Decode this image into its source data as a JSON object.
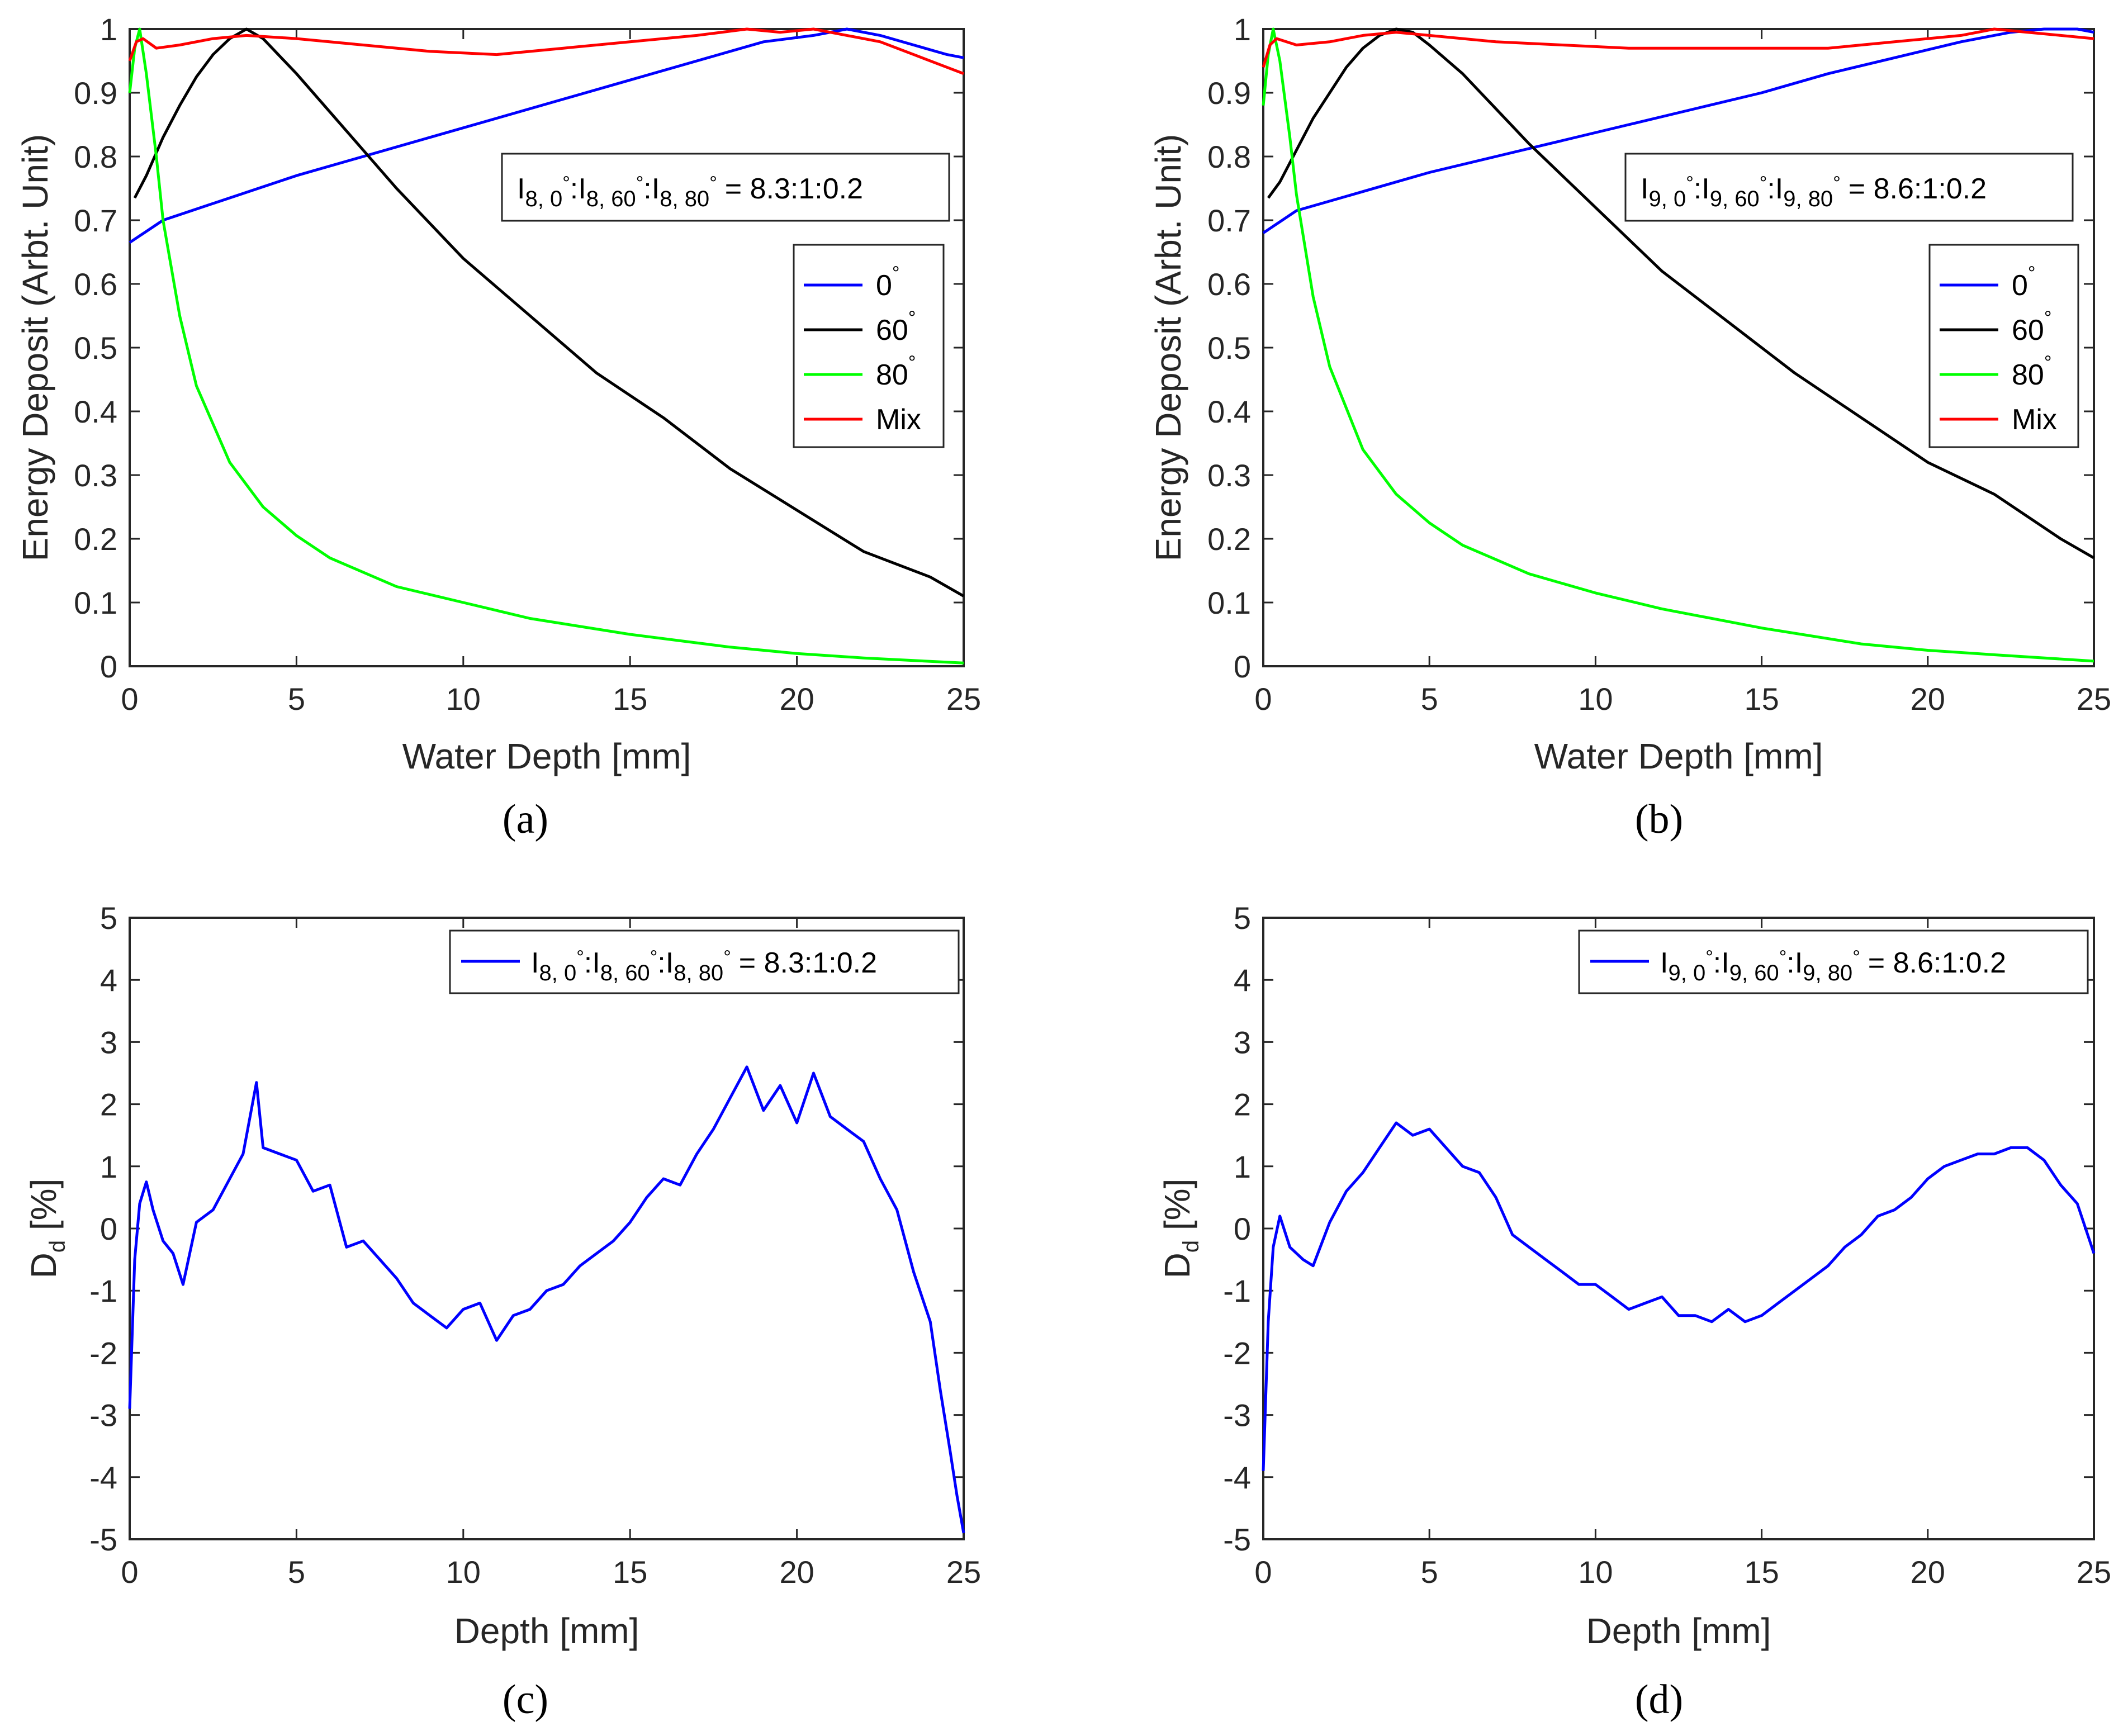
{
  "colors": {
    "blue": "#0000ff",
    "black": "#000000",
    "green": "#00ff00",
    "red": "#ff0000"
  },
  "chart_data": [
    {
      "panel": "a",
      "caption": "(a)",
      "type": "line",
      "xlabel": "Water Depth [mm]",
      "ylabel": "Energy Deposit (Arbt. Unit)",
      "xlim": [
        0,
        25
      ],
      "ylim": [
        0,
        1
      ],
      "xticks": [
        "0",
        "5",
        "10",
        "15",
        "20",
        "25"
      ],
      "yticks": [
        "0",
        "0.1",
        "0.2",
        "0.3",
        "0.4",
        "0.5",
        "0.6",
        "0.7",
        "0.8",
        "0.9",
        "1"
      ],
      "ratio_label": {
        "sym": "I",
        "i": "8",
        "a1": "0",
        "a2": "60",
        "a3": "80",
        "deg": "°",
        "value": "= 8.3:1:0.2"
      },
      "legend_position": "top-right",
      "series": [
        {
          "name": "0",
          "deg": "°",
          "color": "#0000ff",
          "x": [
            0,
            1,
            3,
            5,
            7,
            9,
            11,
            13,
            15,
            17,
            19,
            20.5,
            21.5,
            22.5,
            23.5,
            24.5,
            25
          ],
          "y": [
            0.665,
            0.7,
            0.735,
            0.77,
            0.8,
            0.83,
            0.86,
            0.89,
            0.92,
            0.95,
            0.98,
            0.99,
            1.0,
            0.99,
            0.975,
            0.96,
            0.955
          ]
        },
        {
          "name": "60",
          "deg": "°",
          "color": "#000000",
          "x": [
            0.15,
            0.5,
            1,
            1.5,
            2,
            2.5,
            3,
            3.5,
            4,
            5,
            6,
            7,
            8,
            10,
            12,
            14,
            16,
            18,
            20,
            22,
            24,
            25
          ],
          "y": [
            0.735,
            0.77,
            0.83,
            0.88,
            0.925,
            0.96,
            0.985,
            1.0,
            0.985,
            0.93,
            0.87,
            0.81,
            0.75,
            0.64,
            0.55,
            0.46,
            0.39,
            0.31,
            0.245,
            0.18,
            0.14,
            0.11
          ]
        },
        {
          "name": "80",
          "deg": "°",
          "color": "#00ff00",
          "x": [
            0,
            0.15,
            0.3,
            0.5,
            0.8,
            1,
            1.5,
            2,
            3,
            4,
            5,
            6,
            8,
            10,
            12,
            15,
            18,
            20,
            22,
            25
          ],
          "y": [
            0.9,
            0.97,
            1.0,
            0.93,
            0.8,
            0.7,
            0.55,
            0.44,
            0.32,
            0.25,
            0.205,
            0.17,
            0.125,
            0.1,
            0.075,
            0.05,
            0.03,
            0.02,
            0.013,
            0.005
          ]
        },
        {
          "name": "Mix",
          "color": "#ff0000",
          "x": [
            0,
            0.2,
            0.4,
            0.8,
            1.5,
            2.5,
            3.5,
            5,
            7,
            9,
            11,
            13,
            15,
            17,
            18.5,
            19.5,
            20.5,
            21.5,
            22.5,
            23.5,
            24.5,
            25
          ],
          "y": [
            0.95,
            0.98,
            0.985,
            0.97,
            0.975,
            0.985,
            0.99,
            0.985,
            0.975,
            0.965,
            0.96,
            0.97,
            0.98,
            0.99,
            1.0,
            0.995,
            1.0,
            0.99,
            0.98,
            0.96,
            0.94,
            0.93
          ]
        }
      ]
    },
    {
      "panel": "b",
      "caption": "(b)",
      "type": "line",
      "xlabel": "Water Depth [mm]",
      "ylabel": "Energy Deposit (Arbt. Unit)",
      "xlim": [
        0,
        25
      ],
      "ylim": [
        0,
        1
      ],
      "xticks": [
        "0",
        "5",
        "10",
        "15",
        "20",
        "25"
      ],
      "yticks": [
        "0",
        "0.1",
        "0.2",
        "0.3",
        "0.4",
        "0.5",
        "0.6",
        "0.7",
        "0.8",
        "0.9",
        "1"
      ],
      "ratio_label": {
        "sym": "I",
        "i": "9",
        "a1": "0",
        "a2": "60",
        "a3": "80",
        "deg": "°",
        "value": "= 8.6:1:0.2"
      },
      "legend_position": "top-right",
      "series": [
        {
          "name": "0",
          "deg": "°",
          "color": "#0000ff",
          "x": [
            0,
            1,
            3,
            5,
            7,
            9,
            11,
            13,
            15,
            17,
            19,
            21,
            22.5,
            23.5,
            24.5,
            25
          ],
          "y": [
            0.68,
            0.715,
            0.745,
            0.775,
            0.8,
            0.825,
            0.85,
            0.875,
            0.9,
            0.93,
            0.955,
            0.98,
            0.995,
            1.0,
            1.0,
            0.995
          ]
        },
        {
          "name": "60",
          "deg": "°",
          "color": "#000000",
          "x": [
            0.15,
            0.5,
            1,
            1.5,
            2,
            2.5,
            3,
            3.5,
            4,
            4.5,
            5,
            6,
            7,
            8,
            10,
            12,
            14,
            16,
            18,
            20,
            22,
            24,
            25
          ],
          "y": [
            0.735,
            0.76,
            0.81,
            0.86,
            0.9,
            0.94,
            0.97,
            0.99,
            1.0,
            0.995,
            0.975,
            0.93,
            0.875,
            0.82,
            0.72,
            0.62,
            0.54,
            0.46,
            0.39,
            0.32,
            0.27,
            0.2,
            0.17
          ]
        },
        {
          "name": "80",
          "deg": "°",
          "color": "#00ff00",
          "x": [
            0,
            0.15,
            0.3,
            0.5,
            0.8,
            1,
            1.5,
            2,
            3,
            4,
            5,
            6,
            8,
            10,
            12,
            15,
            18,
            20,
            22,
            25
          ],
          "y": [
            0.88,
            0.96,
            1.0,
            0.95,
            0.83,
            0.74,
            0.58,
            0.47,
            0.34,
            0.27,
            0.225,
            0.19,
            0.145,
            0.115,
            0.09,
            0.06,
            0.035,
            0.025,
            0.018,
            0.008
          ]
        },
        {
          "name": "Mix",
          "color": "#ff0000",
          "x": [
            0,
            0.2,
            0.4,
            1,
            2,
            3,
            4,
            5,
            7,
            9,
            11,
            13,
            15,
            17,
            19,
            21,
            22,
            23,
            24,
            25
          ],
          "y": [
            0.94,
            0.975,
            0.985,
            0.975,
            0.98,
            0.99,
            0.995,
            0.99,
            0.98,
            0.975,
            0.97,
            0.97,
            0.97,
            0.97,
            0.98,
            0.99,
            1.0,
            0.995,
            0.99,
            0.985
          ]
        }
      ]
    },
    {
      "panel": "c",
      "caption": "(c)",
      "type": "line",
      "xlabel": "Depth [mm]",
      "ylabel_main": "D",
      "ylabel_sub": "d",
      "ylabel_rest": " [%]",
      "xlim": [
        0,
        25
      ],
      "ylim": [
        -5,
        5
      ],
      "xticks": [
        "0",
        "5",
        "10",
        "15",
        "20",
        "25"
      ],
      "yticks": [
        "-5",
        "-4",
        "-3",
        "-2",
        "-1",
        "0",
        "1",
        "2",
        "3",
        "4",
        "5"
      ],
      "legend_position": "top-right",
      "ratio_label": {
        "sym": "I",
        "i": "8",
        "a1": "0",
        "a2": "60",
        "a3": "80",
        "deg": "°",
        "value": "= 8.3:1:0.2"
      },
      "series": [
        {
          "color": "#0000ff",
          "x": [
            0,
            0.15,
            0.3,
            0.5,
            0.7,
            1,
            1.3,
            1.6,
            2,
            2.5,
            3,
            3.4,
            3.8,
            4,
            4.5,
            5,
            5.5,
            6,
            6.5,
            7,
            7.5,
            8,
            8.5,
            9,
            9.5,
            10,
            10.5,
            11,
            11.5,
            12,
            12.5,
            13,
            13.5,
            14,
            14.5,
            15,
            15.5,
            16,
            16.5,
            17,
            17.5,
            18,
            18.5,
            19,
            19.5,
            20,
            20.5,
            21,
            21.5,
            22,
            22.5,
            23,
            23.5,
            24,
            24.3,
            24.6,
            24.8,
            25
          ],
          "y": [
            -2.9,
            -0.5,
            0.4,
            0.75,
            0.3,
            -0.2,
            -0.4,
            -0.9,
            0.1,
            0.3,
            0.8,
            1.2,
            2.35,
            1.3,
            1.2,
            1.1,
            0.6,
            0.7,
            -0.3,
            -0.2,
            -0.5,
            -0.8,
            -1.2,
            -1.4,
            -1.6,
            -1.3,
            -1.2,
            -1.8,
            -1.4,
            -1.3,
            -1.0,
            -0.9,
            -0.6,
            -0.4,
            -0.2,
            0.1,
            0.5,
            0.8,
            0.7,
            1.2,
            1.6,
            2.1,
            2.6,
            1.9,
            2.3,
            1.7,
            2.5,
            1.8,
            1.6,
            1.4,
            0.8,
            0.3,
            -0.7,
            -1.5,
            -2.6,
            -3.6,
            -4.3,
            -4.9
          ]
        }
      ]
    },
    {
      "panel": "d",
      "caption": "(d)",
      "type": "line",
      "xlabel": "Depth [mm]",
      "ylabel_main": "D",
      "ylabel_sub": "d",
      "ylabel_rest": " [%]",
      "xlim": [
        0,
        25
      ],
      "ylim": [
        -5,
        5
      ],
      "xticks": [
        "0",
        "5",
        "10",
        "15",
        "20",
        "25"
      ],
      "yticks": [
        "-5",
        "-4",
        "-3",
        "-2",
        "-1",
        "0",
        "1",
        "2",
        "3",
        "4",
        "5"
      ],
      "legend_position": "top-right",
      "ratio_label": {
        "sym": "I",
        "i": "9",
        "a1": "0",
        "a2": "60",
        "a3": "80",
        "deg": "°",
        "value": "= 8.6:1:0.2"
      },
      "series": [
        {
          "color": "#0000ff",
          "x": [
            0,
            0.15,
            0.3,
            0.5,
            0.8,
            1.2,
            1.5,
            2,
            2.5,
            3,
            3.5,
            4,
            4.5,
            5,
            5.5,
            6,
            6.5,
            7,
            7.5,
            8,
            8.5,
            9,
            9.5,
            10,
            10.5,
            11,
            11.5,
            12,
            12.5,
            13,
            13.5,
            14,
            14.5,
            15,
            15.5,
            16,
            16.5,
            17,
            17.5,
            18,
            18.5,
            19,
            19.5,
            20,
            20.5,
            21,
            21.5,
            22,
            22.5,
            23,
            23.5,
            24,
            24.5,
            25
          ],
          "y": [
            -3.9,
            -1.5,
            -0.3,
            0.2,
            -0.3,
            -0.5,
            -0.6,
            0.1,
            0.6,
            0.9,
            1.3,
            1.7,
            1.5,
            1.6,
            1.3,
            1.0,
            0.9,
            0.5,
            -0.1,
            -0.3,
            -0.5,
            -0.7,
            -0.9,
            -0.9,
            -1.1,
            -1.3,
            -1.2,
            -1.1,
            -1.4,
            -1.4,
            -1.5,
            -1.3,
            -1.5,
            -1.4,
            -1.2,
            -1.0,
            -0.8,
            -0.6,
            -0.3,
            -0.1,
            0.2,
            0.3,
            0.5,
            0.8,
            1.0,
            1.1,
            1.2,
            1.2,
            1.3,
            1.3,
            1.1,
            0.7,
            0.4,
            -0.4
          ]
        }
      ]
    }
  ]
}
